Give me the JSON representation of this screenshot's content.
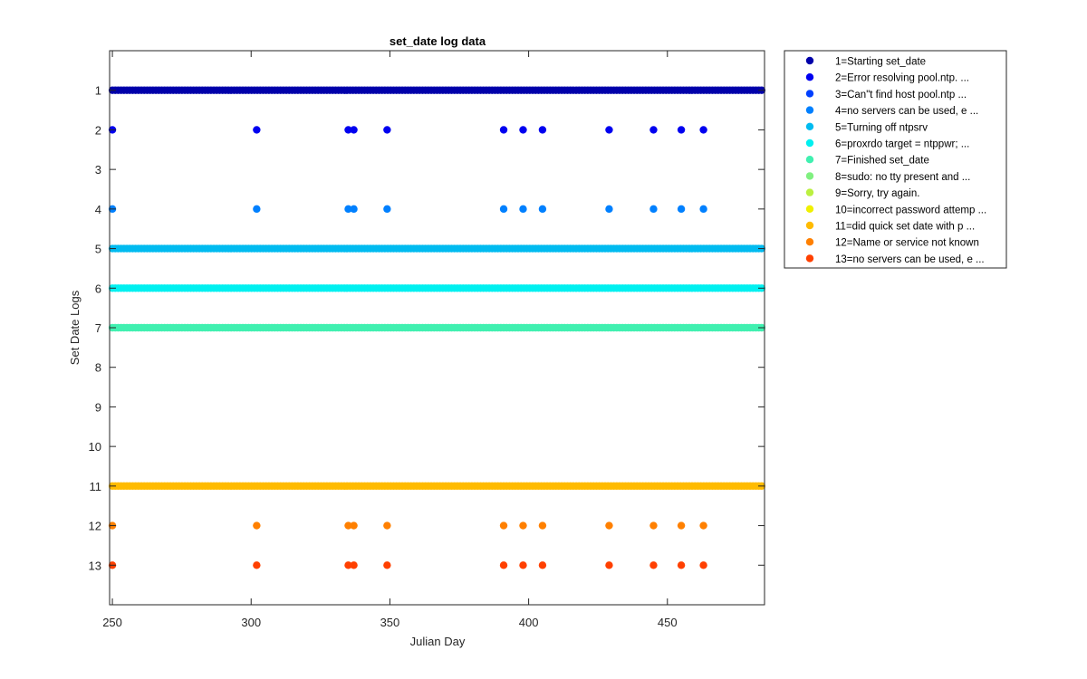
{
  "chart_data": {
    "type": "scatter",
    "title": "set_date log data",
    "xlabel": "Julian Day",
    "ylabel": "Set Date Logs",
    "xlim": [
      249,
      485
    ],
    "ylim": [
      0,
      14
    ],
    "y_reversed": true,
    "grid": false,
    "legend_position": "outside-right",
    "xticks": [
      250,
      300,
      350,
      400,
      450
    ],
    "yticks": [
      1,
      2,
      3,
      4,
      5,
      6,
      7,
      8,
      9,
      10,
      11,
      12,
      13
    ],
    "continuous_x_range": [
      250,
      485
    ],
    "sparse_days": [
      250,
      302,
      335,
      337,
      349,
      391,
      398,
      405,
      429,
      445,
      455,
      463
    ],
    "series": [
      {
        "name": "1=Starting set_date",
        "y": 1,
        "color": "#0000AA",
        "pattern": "continuous"
      },
      {
        "name": "2=Error resolving pool.ntp. ...",
        "y": 2,
        "color": "#0000F0",
        "pattern": "sparse"
      },
      {
        "name": "3=Can\"t find host pool.ntp ...",
        "y": 3,
        "color": "#0040FF",
        "pattern": "none"
      },
      {
        "name": "4=no servers can be used, e ...",
        "y": 4,
        "color": "#0080FF",
        "pattern": "sparse"
      },
      {
        "name": "5=Turning off ntpsrv",
        "y": 5,
        "color": "#00BBF0",
        "pattern": "continuous"
      },
      {
        "name": "6=proxrdo target = ntppwr;  ...",
        "y": 6,
        "color": "#00F0F0",
        "pattern": "continuous"
      },
      {
        "name": "7=Finished set_date",
        "y": 7,
        "color": "#40F0B0",
        "pattern": "continuous"
      },
      {
        "name": "8=sudo: no tty present and  ...",
        "y": 8,
        "color": "#80F080",
        "pattern": "none"
      },
      {
        "name": "9=Sorry, try again.",
        "y": 9,
        "color": "#BBF040",
        "pattern": "none"
      },
      {
        "name": "10=incorrect password attemp ...",
        "y": 10,
        "color": "#F0F000",
        "pattern": "none"
      },
      {
        "name": "11=did quick set date with p ...",
        "y": 11,
        "color": "#FFBB00",
        "pattern": "continuous"
      },
      {
        "name": "12=Name or service not known",
        "y": 12,
        "color": "#FF8000",
        "pattern": "sparse"
      },
      {
        "name": "13=no servers can be used, e ...",
        "y": 13,
        "color": "#FF4000",
        "pattern": "sparse"
      }
    ]
  }
}
